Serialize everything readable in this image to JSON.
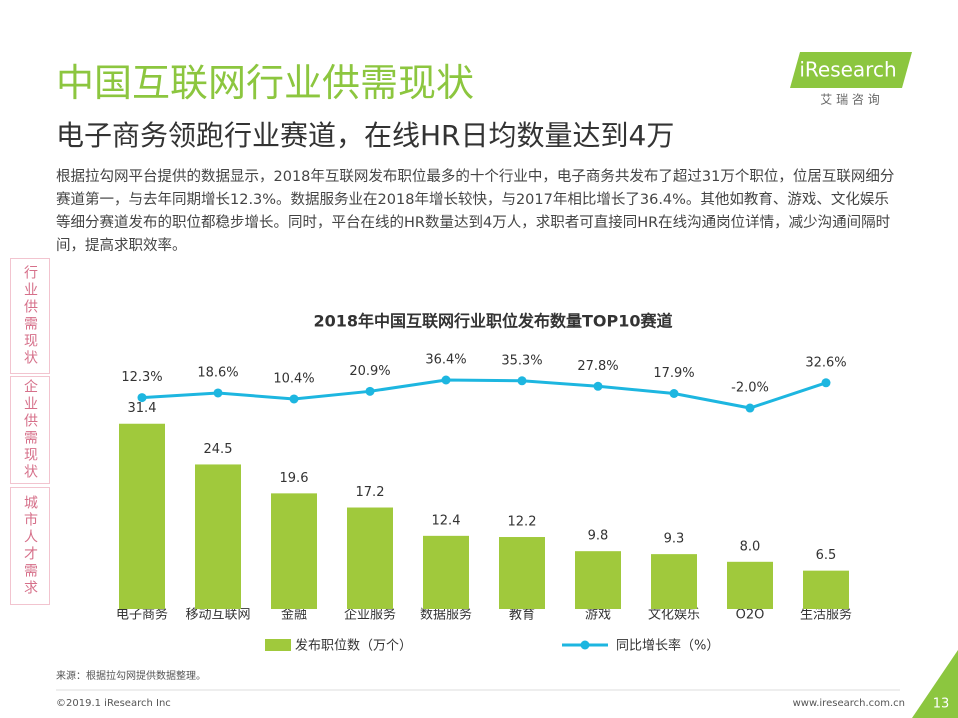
{
  "header": {
    "title": "中国互联网行业供需现状",
    "subtitle": "电子商务领跑行业赛道，在线HR日均数量达到4万",
    "paragraph": "根据拉勾网平台提供的数据显示，2018年互联网发布职位最多的十个行业中，电子商务共发布了超过31万个职位，位居互联网细分赛道第一，与去年同期增长12.3%。数据服务业在2018年增长较快，与2017年相比增长了36.4%。其他如教育、游戏、文化娱乐等细分赛道发布的职位都稳步增长。同时，平台在线的HR数量达到4万人，求职者可直接同HR在线沟通岗位详情，减少沟通间隔时间，提高求职效率。"
  },
  "logo": {
    "brand": "iResearch",
    "tagline": "艾 瑞 咨 询"
  },
  "sidebar": [
    "行业供需现状",
    "企业供需现状",
    "城市人才需求"
  ],
  "chart_data": {
    "type": "bar",
    "title": "2018年中国互联网行业职位发布数量TOP10赛道",
    "categories": [
      "电子商务",
      "移动互联网",
      "金融",
      "企业服务",
      "数据服务",
      "教育",
      "游戏",
      "文化娱乐",
      "O2O",
      "生活服务"
    ],
    "series": [
      {
        "name": "发布职位数（万个）",
        "type": "bar",
        "color": "#a0c93c",
        "values": [
          31.4,
          24.5,
          19.6,
          17.2,
          12.4,
          12.2,
          9.8,
          9.3,
          8.0,
          6.5
        ],
        "value_labels": [
          "31.4",
          "24.5",
          "19.6",
          "17.2",
          "12.4",
          "12.2",
          "9.8",
          "9.3",
          "8.0",
          "6.5"
        ]
      },
      {
        "name": "同比增长率（%）",
        "type": "line",
        "axis": "y2",
        "color": "#1db6e0",
        "values": [
          12.3,
          18.6,
          10.4,
          20.9,
          36.4,
          35.3,
          27.8,
          17.9,
          -2.0,
          32.6
        ],
        "value_labels": [
          "12.3%",
          "18.6%",
          "10.4%",
          "20.9%",
          "36.4%",
          "35.3%",
          "27.8%",
          "17.9%",
          "-2.0%",
          "32.6%"
        ]
      }
    ]
  },
  "footer": {
    "source": "来源：根据拉勾网提供数据整理。",
    "copyright": "©2019.1 iResearch Inc",
    "website": "www.iresearch.com.cn",
    "page": "13"
  }
}
